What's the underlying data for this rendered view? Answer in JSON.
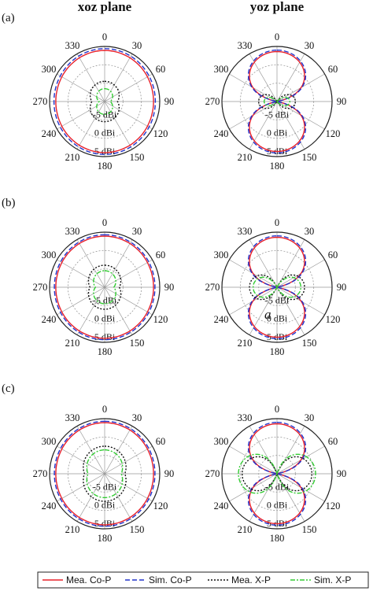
{
  "figure": {
    "column_titles": [
      "xoz plane",
      "yoz plane"
    ],
    "row_labels": [
      "(a)",
      "(b)",
      "(c)"
    ],
    "annotation_a": "a",
    "legend": [
      {
        "label": "Mea. Co-P",
        "color": "#e8202a",
        "dash": "solid"
      },
      {
        "label": "Sim. Co-P",
        "color": "#2233cc",
        "dash": "dashed"
      },
      {
        "label": "Mea. X-P",
        "color": "#111111",
        "dash": "dotted"
      },
      {
        "label": "Sim. X-P",
        "color": "#33cc33",
        "dash": "dashdot"
      }
    ]
  },
  "chart_data": [
    {
      "type": "polar",
      "panel": "(a)",
      "plane": "xoz plane",
      "angle_ticks": [
        "0",
        "30",
        "60",
        "90",
        "120",
        "150",
        "180",
        "210",
        "240",
        "270",
        "300",
        "330"
      ],
      "radial_ticks": [
        "-5 dBi",
        "0 dBi",
        "5 dBi"
      ],
      "rlim_dbi": [
        -10,
        5
      ],
      "series": [
        {
          "name": "Mea. Co-P",
          "pattern": {
            "kind": "omni",
            "level": 3.6
          }
        },
        {
          "name": "Sim. Co-P",
          "pattern": {
            "kind": "omni",
            "level": 4.1
          }
        },
        {
          "name": "Mea. X-P",
          "pattern": {
            "kind": "small",
            "level": -6.5
          }
        },
        {
          "name": "Sim. X-P",
          "pattern": {
            "kind": "small",
            "level": -8.5
          }
        }
      ]
    },
    {
      "type": "polar",
      "panel": "(a)",
      "plane": "yoz plane",
      "angle_ticks": [
        "0",
        "30",
        "60",
        "90",
        "120",
        "150",
        "180",
        "210",
        "240",
        "270",
        "300",
        "330"
      ],
      "radial_ticks": [
        "-5 dBi",
        "0 dBi",
        "5 dBi"
      ],
      "rlim_dbi": [
        -10,
        5
      ],
      "series": [
        {
          "name": "Mea. Co-P",
          "pattern": {
            "kind": "eight",
            "level": 3.6
          }
        },
        {
          "name": "Sim. Co-P",
          "pattern": {
            "kind": "eight",
            "level": 4.0
          }
        },
        {
          "name": "Mea. X-P",
          "pattern": {
            "kind": "eight90",
            "level": -5.0
          }
        },
        {
          "name": "Sim. X-P",
          "pattern": {
            "kind": "eight90",
            "level": -6.5
          }
        }
      ]
    },
    {
      "type": "polar",
      "panel": "(b)",
      "plane": "xoz plane",
      "angle_ticks": [
        "0",
        "30",
        "60",
        "90",
        "120",
        "150",
        "180",
        "210",
        "240",
        "270",
        "300",
        "330"
      ],
      "radial_ticks": [
        "-5 dBi",
        "0 dBi",
        "5 dBi"
      ],
      "rlim_dbi": [
        -10,
        5
      ],
      "series": [
        {
          "name": "Mea. Co-P",
          "pattern": {
            "kind": "omni",
            "level": 3.6
          }
        },
        {
          "name": "Sim. Co-P",
          "pattern": {
            "kind": "omni",
            "level": 4.0
          }
        },
        {
          "name": "Mea. X-P",
          "pattern": {
            "kind": "small",
            "level": -6.0
          }
        },
        {
          "name": "Sim. X-P",
          "pattern": {
            "kind": "small",
            "level": -7.5
          }
        }
      ]
    },
    {
      "type": "polar",
      "panel": "(b)",
      "plane": "yoz plane",
      "angle_ticks": [
        "0",
        "30",
        "60",
        "90",
        "120",
        "150",
        "180",
        "210",
        "240",
        "270",
        "300",
        "330"
      ],
      "radial_ticks": [
        "-5 dBi",
        "0 dBi",
        "5 dBi"
      ],
      "rlim_dbi": [
        -10,
        5
      ],
      "series": [
        {
          "name": "Mea. Co-P",
          "pattern": {
            "kind": "eight",
            "level": 3.6
          }
        },
        {
          "name": "Sim. Co-P",
          "pattern": {
            "kind": "eight",
            "level": 4.0
          }
        },
        {
          "name": "Mea. X-P",
          "pattern": {
            "kind": "eight90",
            "level": -2.5
          }
        },
        {
          "name": "Sim. X-P",
          "pattern": {
            "kind": "eight90",
            "level": -3.5
          }
        }
      ]
    },
    {
      "type": "polar",
      "panel": "(c)",
      "plane": "xoz plane",
      "angle_ticks": [
        "0",
        "30",
        "60",
        "90",
        "120",
        "150",
        "180",
        "210",
        "240",
        "270",
        "300",
        "330"
      ],
      "radial_ticks": [
        "-5 dBi",
        "0 dBi",
        "5 dBi"
      ],
      "rlim_dbi": [
        -10,
        5
      ],
      "series": [
        {
          "name": "Mea. Co-P",
          "pattern": {
            "kind": "omni",
            "level": 3.6
          }
        },
        {
          "name": "Sim. Co-P",
          "pattern": {
            "kind": "omni",
            "level": 4.0
          }
        },
        {
          "name": "Mea. X-P",
          "pattern": {
            "kind": "small",
            "level": -4.5
          }
        },
        {
          "name": "Sim. X-P",
          "pattern": {
            "kind": "small",
            "level": -5.5
          }
        }
      ]
    },
    {
      "type": "polar",
      "panel": "(c)",
      "plane": "yoz plane",
      "angle_ticks": [
        "0",
        "30",
        "60",
        "90",
        "120",
        "150",
        "180",
        "210",
        "240",
        "270",
        "300",
        "330"
      ],
      "radial_ticks": [
        "-5 dBi",
        "0 dBi",
        "5 dBi"
      ],
      "rlim_dbi": [
        -10,
        5
      ],
      "series": [
        {
          "name": "Mea. Co-P",
          "pattern": {
            "kind": "eight",
            "level": 3.6
          }
        },
        {
          "name": "Sim. Co-P",
          "pattern": {
            "kind": "eight",
            "level": 4.0
          }
        },
        {
          "name": "Mea. X-P",
          "pattern": {
            "kind": "eight90",
            "level": -0.5
          }
        },
        {
          "name": "Sim. X-P",
          "pattern": {
            "kind": "eight90",
            "level": 0.5
          }
        }
      ]
    }
  ]
}
